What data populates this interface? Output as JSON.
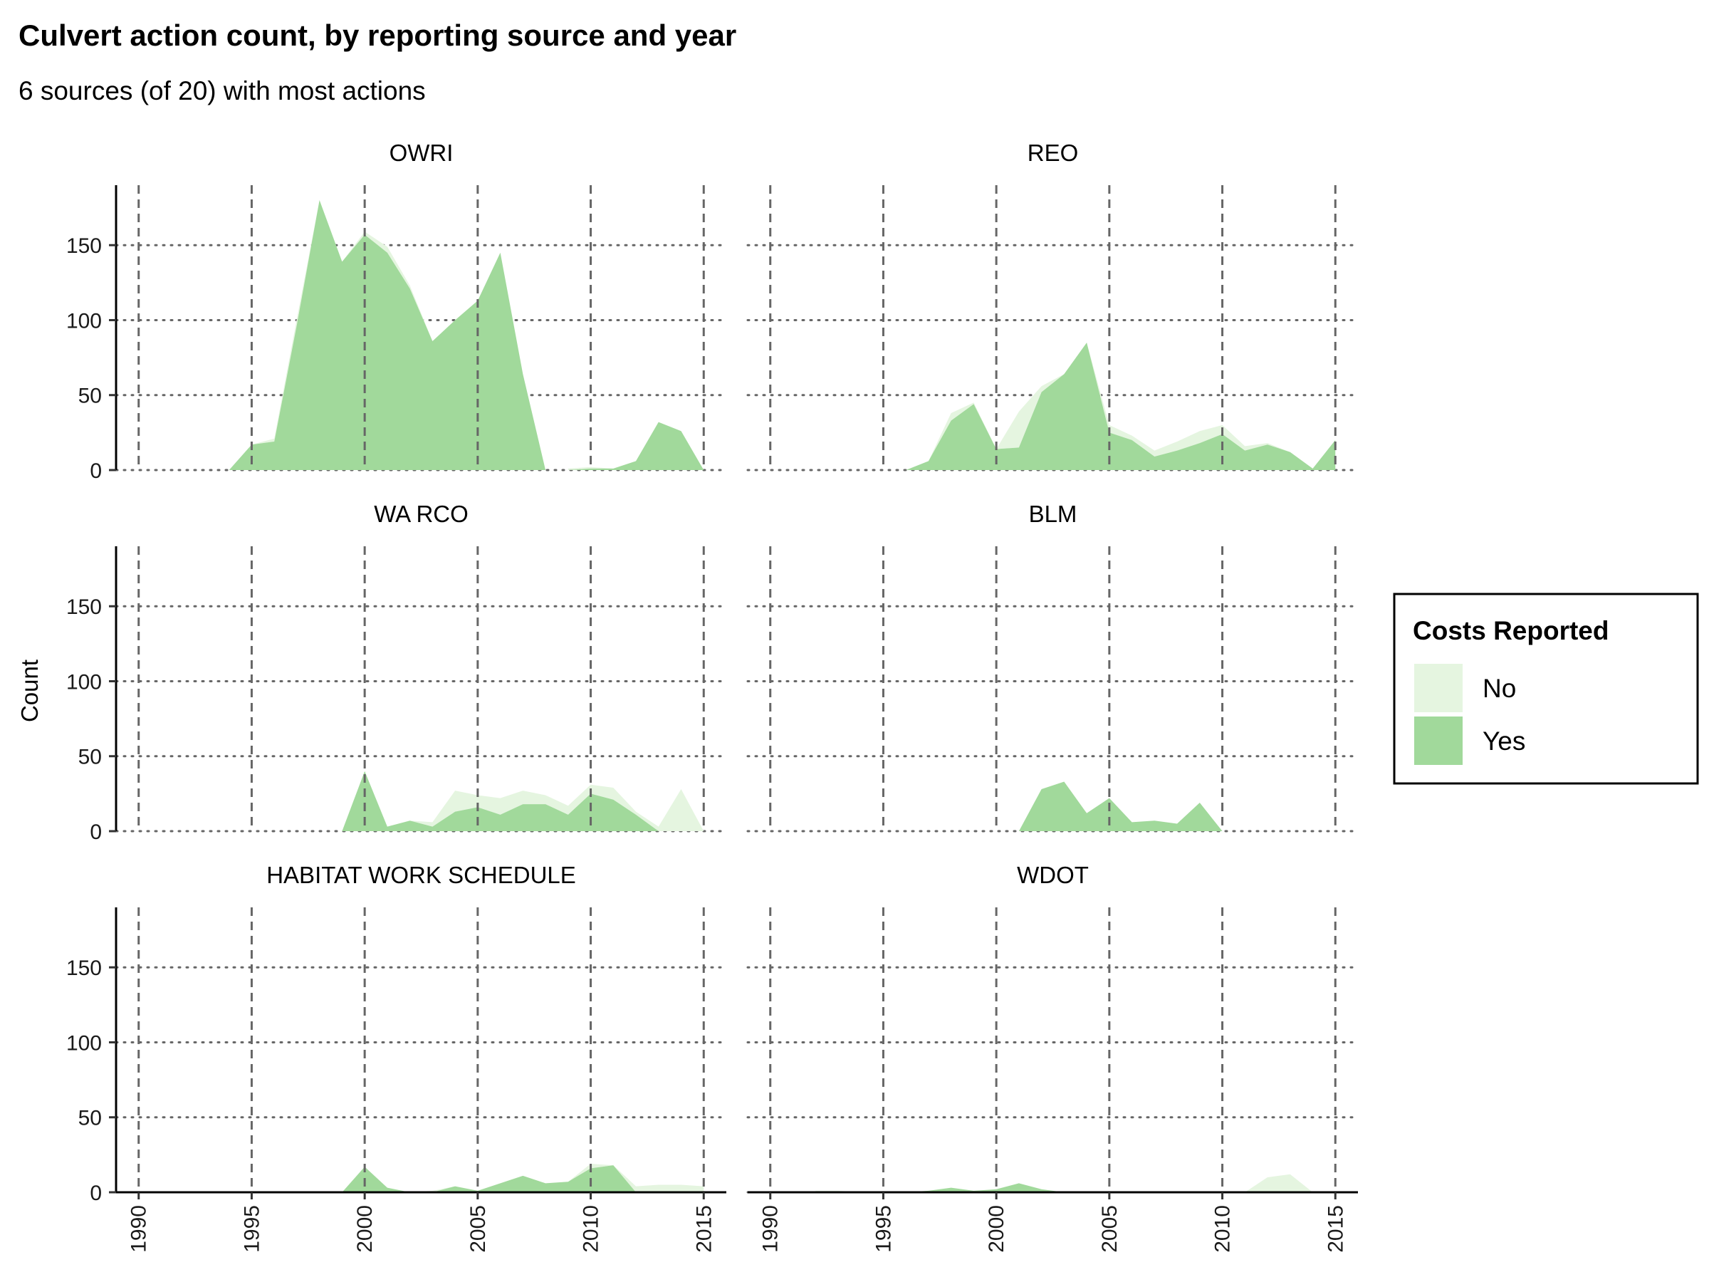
{
  "title": "Culvert action count, by reporting source and year",
  "subtitle": "6 sources (of 20) with most actions",
  "ylabel": "Count",
  "legend": {
    "title": "Costs Reported",
    "items": [
      {
        "label": "No",
        "color": "#e5f5e0"
      },
      {
        "label": "Yes",
        "color": "#a1d99b"
      }
    ]
  },
  "colors": {
    "no": "#e5f5e0",
    "yes": "#a1d99b",
    "grid": "#666666"
  },
  "chart_data": {
    "type": "area",
    "stacked": true,
    "facet_layout": "3 rows x 2 columns",
    "xlim": [
      1989,
      2016
    ],
    "ylim": [
      0,
      190
    ],
    "x_ticks": [
      1990,
      1995,
      2000,
      2005,
      2010,
      2015
    ],
    "y_ticks": [
      0,
      50,
      100,
      150
    ],
    "x_gridlines": "dashed",
    "y_gridlines": "dotted",
    "legend_position": "right",
    "series_names": [
      "No",
      "Yes"
    ],
    "panels": [
      {
        "name": "OWRI",
        "segments": [
          {
            "x": [
              1994,
              1995,
              1996,
              1997,
              1998,
              1999,
              2000,
              2001,
              2002,
              2003,
              2004,
              2005,
              2006,
              2007,
              2008
            ],
            "yes": [
              0,
              17,
              19,
              97,
              180,
              139,
              157,
              145,
              121,
              86,
              100,
              113,
              145,
              64,
              0
            ],
            "no": [
              0,
              0,
              2,
              4,
              0,
              0,
              2,
              4,
              2,
              0,
              0,
              0,
              0,
              0,
              0
            ]
          },
          {
            "x": [
              2009,
              2010,
              2011,
              2012,
              2013,
              2014,
              2015
            ],
            "yes": [
              0,
              1,
              1,
              6,
              32,
              26,
              0
            ],
            "no": [
              1,
              1,
              0,
              0,
              0,
              0,
              0
            ]
          }
        ]
      },
      {
        "name": "REO",
        "segments": [
          {
            "x": [
              1996,
              1997,
              1998,
              1999,
              2000,
              2001,
              2002,
              2003,
              2004,
              2005,
              2006,
              2007,
              2008,
              2009,
              2010,
              2011,
              2012,
              2013,
              2014,
              2015
            ],
            "yes": [
              0,
              6,
              33,
              44,
              14,
              15,
              52,
              64,
              85,
              25,
              20,
              9,
              13,
              18,
              24,
              13,
              17,
              12,
              1,
              20
            ],
            "no": [
              0,
              0,
              5,
              1,
              0,
              24,
              4,
              0,
              0,
              5,
              3,
              4,
              6,
              8,
              6,
              3,
              1,
              0,
              0,
              0
            ]
          }
        ]
      },
      {
        "name": "WA RCO",
        "segments": [
          {
            "x": [
              1999,
              2000,
              2001,
              2002,
              2003,
              2004,
              2005,
              2006,
              2007,
              2008,
              2009,
              2010,
              2011,
              2012,
              2013,
              2014,
              2015
            ],
            "yes": [
              0,
              40,
              3,
              7,
              3,
              13,
              16,
              11,
              18,
              18,
              11,
              25,
              21,
              11,
              0,
              0,
              0
            ],
            "no": [
              0,
              0,
              0,
              0,
              3,
              14,
              8,
              11,
              9,
              6,
              6,
              6,
              8,
              2,
              3,
              28,
              0
            ]
          }
        ]
      },
      {
        "name": "BLM",
        "segments": [
          {
            "x": [
              2001,
              2002,
              2003,
              2004,
              2005,
              2006,
              2007,
              2008,
              2009,
              2010
            ],
            "yes": [
              0,
              28,
              33,
              12,
              22,
              6,
              7,
              5,
              19,
              0
            ],
            "no": [
              0,
              0,
              0,
              0,
              0,
              0,
              0,
              0,
              0,
              0
            ]
          }
        ]
      },
      {
        "name": "HABITAT WORK SCHEDULE",
        "segments": [
          {
            "x": [
              1999,
              2000,
              2001,
              2002,
              2003,
              2004,
              2005,
              2006,
              2007,
              2008,
              2009,
              2010,
              2011,
              2012,
              2013,
              2014,
              2015
            ],
            "yes": [
              0,
              17,
              3,
              0,
              0,
              4,
              1,
              6,
              11,
              6,
              7,
              16,
              18,
              0,
              0,
              0,
              0
            ],
            "no": [
              0,
              0,
              0,
              0,
              1,
              0,
              0,
              0,
              0,
              0,
              0,
              3,
              0,
              4,
              5,
              5,
              4
            ]
          }
        ]
      },
      {
        "name": "WDOT",
        "segments": [
          {
            "x": [
              1992,
              1993,
              1994,
              1995,
              1996,
              1997,
              1998,
              1999,
              2000,
              2001,
              2002,
              2003,
              2004
            ],
            "yes": [
              0,
              0,
              0,
              0,
              0,
              1,
              3,
              1,
              2,
              6,
              2,
              0,
              0
            ],
            "no": [
              1,
              1,
              0,
              0,
              0,
              0,
              0,
              0,
              0,
              0,
              0,
              0,
              0
            ]
          },
          {
            "x": [
              2011,
              2012,
              2013,
              2014
            ],
            "yes": [
              0,
              0,
              0,
              0
            ],
            "no": [
              0,
              10,
              12,
              0
            ]
          }
        ]
      }
    ]
  }
}
